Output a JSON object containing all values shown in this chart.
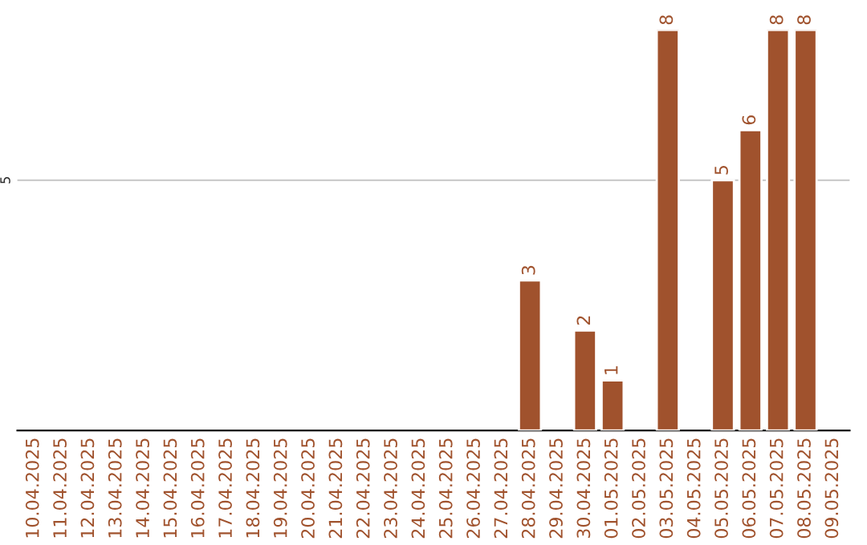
{
  "chart_data": {
    "type": "bar",
    "categories": [
      "10.04.2025",
      "11.04.2025",
      "12.04.2025",
      "13.04.2025",
      "14.04.2025",
      "15.04.2025",
      "16.04.2025",
      "17.04.2025",
      "18.04.2025",
      "19.04.2025",
      "20.04.2025",
      "21.04.2025",
      "22.04.2025",
      "23.04.2025",
      "24.04.2025",
      "25.04.2025",
      "26.04.2025",
      "27.04.2025",
      "28.04.2025",
      "29.04.2025",
      "30.04.2025",
      "01.05.2025",
      "02.05.2025",
      "03.05.2025",
      "04.05.2025",
      "05.05.2025",
      "06.05.2025",
      "07.05.2025",
      "08.05.2025",
      "09.05.2025"
    ],
    "values": [
      null,
      null,
      null,
      null,
      null,
      null,
      null,
      null,
      null,
      null,
      null,
      null,
      null,
      null,
      null,
      null,
      null,
      null,
      3,
      null,
      2,
      1,
      null,
      8,
      null,
      5,
      6,
      8,
      8,
      null
    ],
    "color": "#a0522d",
    "ylim": [
      0,
      8
    ],
    "yticks": [
      5
    ],
    "grid": "y",
    "data_labels": true
  }
}
